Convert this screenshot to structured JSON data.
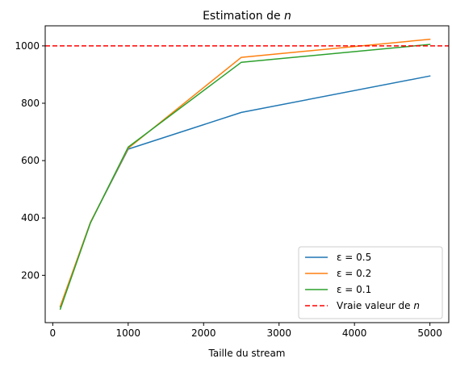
{
  "chart_data": {
    "type": "line",
    "title": "Estimation de n",
    "title_prefix": "Estimation de ",
    "title_var": "n",
    "xlabel": "Taille du stream",
    "ylabel": "",
    "xlim": [
      -100,
      5250
    ],
    "ylim": [
      35,
      1070
    ],
    "xticks": [
      0,
      1000,
      2000,
      3000,
      4000,
      5000
    ],
    "yticks": [
      200,
      400,
      600,
      800,
      1000
    ],
    "grid": false,
    "legend_position": "lower-right",
    "x": [
      100,
      500,
      1000,
      2500,
      5000
    ],
    "series": [
      {
        "name": "ε = 0.5",
        "color": "#1f77b4",
        "values": [
          90,
          385,
          640,
          768,
          895
        ]
      },
      {
        "name": "ε = 0.2",
        "color": "#ff7f0e",
        "values": [
          92,
          385,
          643,
          960,
          1023
        ]
      },
      {
        "name": "ε = 0.1",
        "color": "#2ca02c",
        "values": [
          82,
          383,
          647,
          943,
          1005
        ]
      }
    ],
    "reference_line": {
      "name": "Vraie valeur de n",
      "name_prefix": "Vraie valeur de ",
      "name_var": "n",
      "value": 1000,
      "color": "#ff0000",
      "style": "dashed"
    }
  }
}
